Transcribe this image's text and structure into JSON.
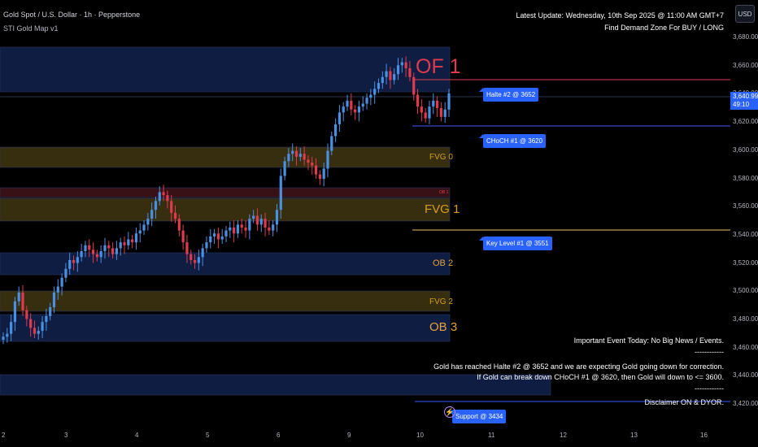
{
  "header": {
    "symbol_line": "Gold Spot / U.S. Dollar · 1h · Pepperstone",
    "indicator_line": "STI Gold Map v1",
    "update_line": "Latest Update: Wednesday, 10th Sep 2025 @ 11:00 AM GMT+7",
    "zone_line": "Find Demand Zone For BUY / LONG"
  },
  "currency_button": "USD",
  "price_axis": {
    "ticks": [
      "3,680.00",
      "3,660.00",
      "3,640.00",
      "3,620.00",
      "3,600.00",
      "3,580.00",
      "3,560.00",
      "3,540.00",
      "3,520.00",
      "3,500.00",
      "3,480.00",
      "3,460.00",
      "3,440.00",
      "3,420.00"
    ],
    "current_price": "3,640.99",
    "countdown": "49:10"
  },
  "time_axis": {
    "ticks": [
      "2",
      "3",
      "4",
      "5",
      "6",
      "9",
      "10",
      "11",
      "12",
      "13",
      "16"
    ]
  },
  "zones": [
    {
      "label": "OF 1",
      "color": "#e03a4e"
    },
    {
      "label": "FVG 0",
      "color": "#d4a017"
    },
    {
      "label": "OB 1",
      "color": "#e0404e"
    },
    {
      "label": "FVG 1",
      "color": "#d4a017"
    },
    {
      "label": "OB 2",
      "color": "#e6a23c"
    },
    {
      "label": "FVG 2",
      "color": "#d4a017"
    },
    {
      "label": "OB 3",
      "color": "#e6a23c"
    }
  ],
  "levels": [
    {
      "label": "Halte #2 @ 3652"
    },
    {
      "label": "CHoCH #1 @ 3620"
    },
    {
      "label": "Key Level #1 @ 3551"
    },
    {
      "label": "Support @ 3434"
    }
  ],
  "notes": {
    "event": "Important Event Today: No Big News / Events.",
    "divider1": "------------",
    "line1": "Gold has reached Halte #2 @ 3652 and we are expecting Gold going down for correction.",
    "line2": "If Gold can break down CHoCH #1 @ 3620, then Gold will down to <= 3600.",
    "divider2": "------------",
    "disclaimer": "Disclaimer ON & DYOR."
  },
  "colors": {
    "up_candle": "#4a90e2",
    "down_candle": "#e03a4e",
    "accent_blue": "#2962ff",
    "zone_blue_fill": "#0f1f45",
    "zone_yellow_fill": "#3a3010",
    "zone_red_fill": "#3a1218"
  },
  "chart_data": {
    "type": "candlestick",
    "symbol": "Gold Spot / U.S. Dollar",
    "timeframe": "1h",
    "ylim": [
      3414,
      3690
    ],
    "x_tick_labels": [
      "2",
      "3",
      "4",
      "5",
      "6",
      "9",
      "10",
      "11",
      "12",
      "13",
      "16"
    ],
    "closes": [
      3476,
      3478,
      3486,
      3500,
      3506,
      3494,
      3488,
      3482,
      3478,
      3480,
      3486,
      3490,
      3496,
      3506,
      3510,
      3516,
      3522,
      3528,
      3526,
      3530,
      3534,
      3538,
      3535,
      3532,
      3530,
      3534,
      3538,
      3536,
      3532,
      3536,
      3540,
      3538,
      3542,
      3540,
      3546,
      3548,
      3552,
      3556,
      3562,
      3568,
      3574,
      3572,
      3568,
      3560,
      3556,
      3548,
      3540,
      3532,
      3528,
      3526,
      3530,
      3536,
      3540,
      3544,
      3546,
      3542,
      3544,
      3548,
      3550,
      3546,
      3552,
      3550,
      3548,
      3556,
      3558,
      3552,
      3556,
      3550,
      3548,
      3552,
      3562,
      3585,
      3595,
      3600,
      3602,
      3598,
      3600,
      3596,
      3594,
      3592,
      3586,
      3583,
      3590,
      3602,
      3612,
      3620,
      3628,
      3632,
      3636,
      3630,
      3628,
      3632,
      3634,
      3638,
      3640,
      3644,
      3648,
      3652,
      3656,
      3650,
      3654,
      3660,
      3662,
      3658,
      3652,
      3640,
      3632,
      3628,
      3624,
      3632,
      3636,
      3631,
      3625,
      3630,
      3641
    ]
  }
}
